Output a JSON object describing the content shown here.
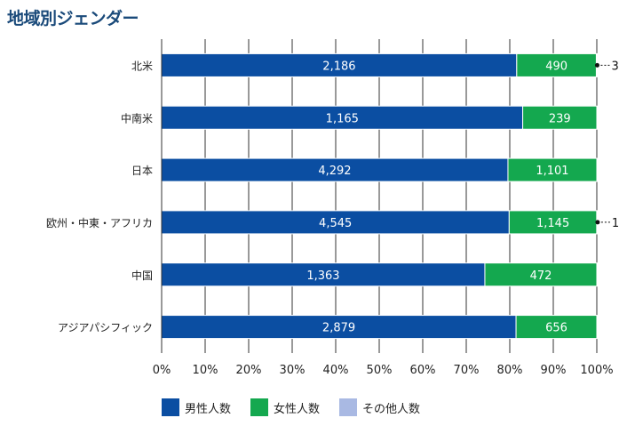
{
  "title": "地域別ジェンダー",
  "colors": {
    "male": "#0b4ea2",
    "female": "#14a84f",
    "other": "#a9b9e3"
  },
  "chart_data": {
    "type": "bar",
    "orientation": "horizontal",
    "stacked": "percent",
    "categories": [
      "北米",
      "中南米",
      "日本",
      "欧州・中東・アフリカ",
      "中国",
      "アジアパシフィック"
    ],
    "series": [
      {
        "name": "男性人数",
        "values": [
          2186,
          1165,
          4292,
          4545,
          1363,
          2879
        ]
      },
      {
        "name": "女性人数",
        "values": [
          490,
          239,
          1101,
          1145,
          472,
          656
        ]
      },
      {
        "name": "その他人数",
        "values": [
          3,
          0,
          0,
          1,
          0,
          0
        ]
      }
    ],
    "value_labels": {
      "male": [
        "2,186",
        "1,165",
        "4,292",
        "4,545",
        "1,363",
        "2,879"
      ],
      "female": [
        "490",
        "239",
        "1,101",
        "1,145",
        "472",
        "656"
      ],
      "other": [
        "3",
        "",
        "",
        "1",
        "",
        ""
      ]
    },
    "xticks": [
      "0%",
      "10%",
      "20%",
      "30%",
      "40%",
      "50%",
      "60%",
      "70%",
      "80%",
      "90%",
      "100%"
    ],
    "xlim": [
      0,
      100
    ],
    "grid": "vertical",
    "legend": "bottom"
  }
}
